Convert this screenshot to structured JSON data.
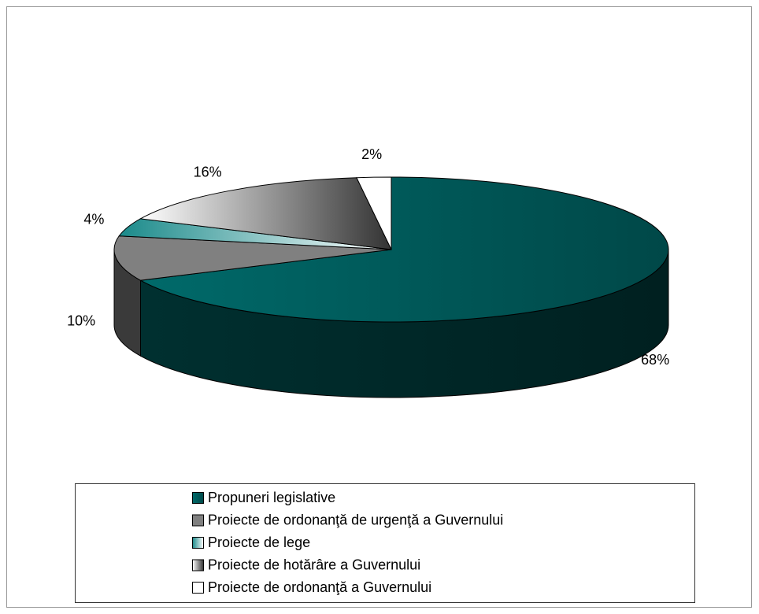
{
  "chart_data": {
    "type": "pie",
    "categories": [
      "Propuneri legislative",
      "Proiecte de ordonanţă de urgenţă a Guvernului",
      "Proiecte de lege",
      "Proiecte de hotărâre a Guvernului",
      "Proiecte de ordonanţă a Guvernului"
    ],
    "values": [
      68,
      10,
      4,
      16,
      2
    ],
    "value_labels": [
      "68%",
      "10%",
      "4%",
      "16%",
      "2%"
    ],
    "colors": [
      [
        "#006a6a",
        "#004848"
      ],
      [
        "#808080",
        "#808080"
      ],
      [
        "#1a8a8a",
        "#ffffff"
      ],
      [
        "#ffffff",
        "#333333"
      ],
      [
        "#ffffff",
        "#ffffff"
      ]
    ],
    "legend": "bottom"
  }
}
